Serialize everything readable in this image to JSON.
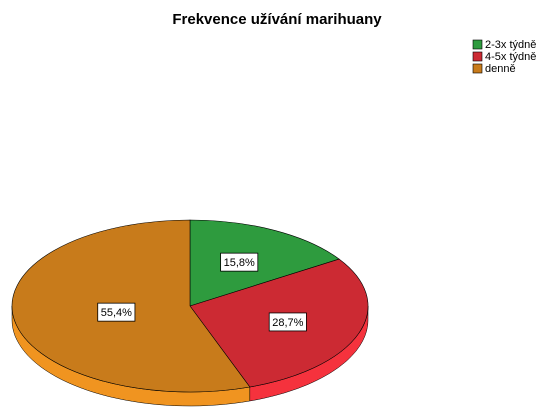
{
  "chart_data": {
    "type": "pie",
    "title": "Frekvence užívání marihuany",
    "categories": [
      "2-3x týdně",
      "4-5x týdně",
      "denně"
    ],
    "values": [
      15.8,
      28.7,
      55.4
    ],
    "value_labels": [
      "15,8%",
      "28,7%",
      "55,4%"
    ],
    "colors": [
      "#2e9b3e",
      "#cc2a33",
      "#c87b1b"
    ],
    "legend_position": "top-right"
  }
}
